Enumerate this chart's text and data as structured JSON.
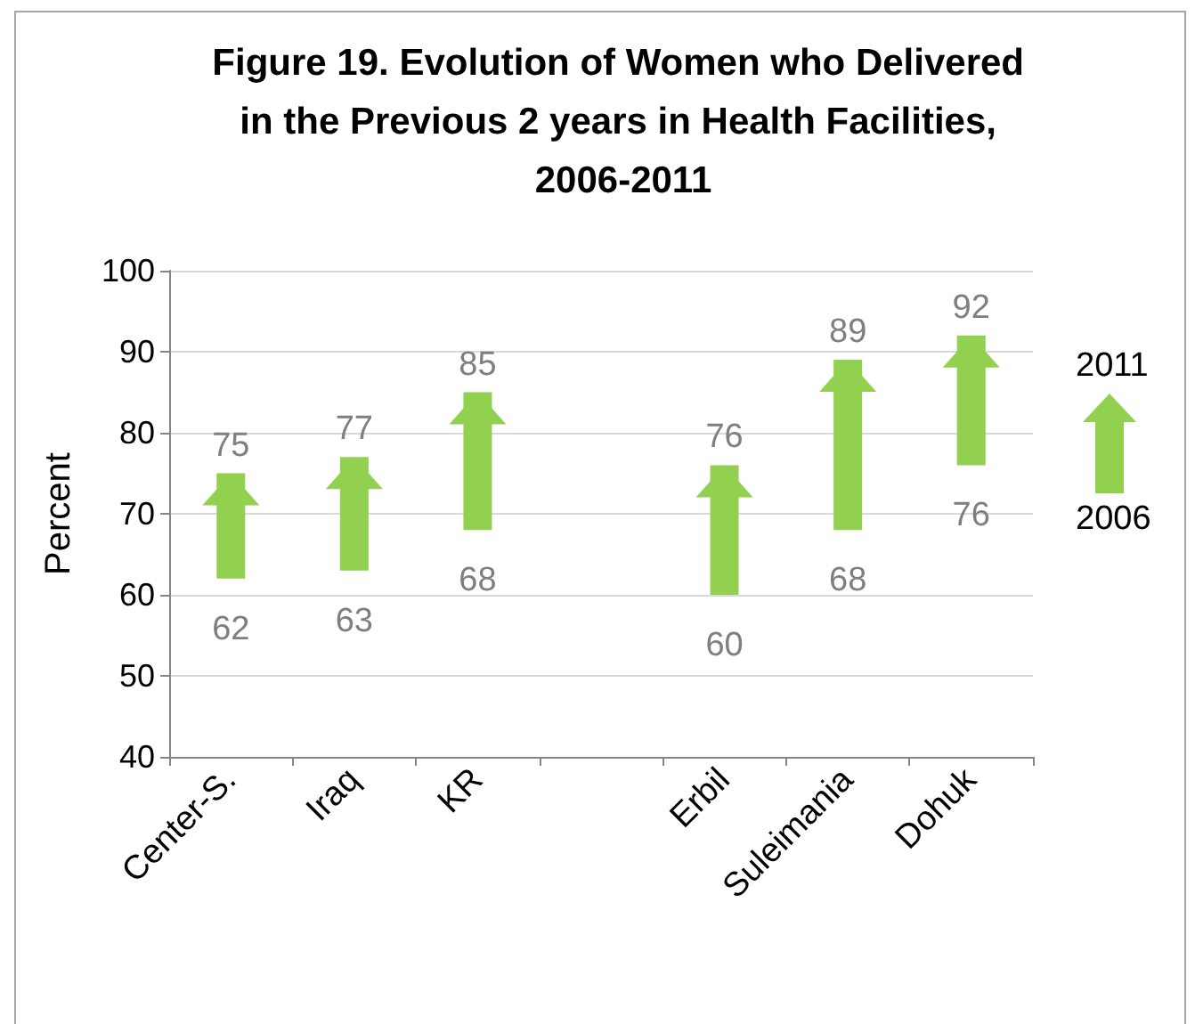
{
  "chart_data": {
    "type": "bar",
    "title": "Figure 19. Evolution of Women who Delivered in the Previous 2 years in Health Facilities, 2006-2011",
    "ylabel": "Percent",
    "categories": [
      "Center-S.",
      "Iraq",
      "KR",
      null,
      "Erbil",
      "Suleimania",
      "Dohuk"
    ],
    "base": [
      62,
      63,
      68,
      null,
      60,
      68,
      76
    ],
    "values": [
      13,
      14,
      17,
      null,
      16,
      21,
      16
    ],
    "value_labels": [
      "75",
      "77",
      "85",
      null,
      "76",
      "89",
      "92"
    ],
    "color": "#92d050",
    "ylim": [
      40,
      100
    ],
    "yticks": [
      40,
      50,
      60,
      70,
      80,
      90,
      100
    ],
    "grid": "y",
    "annotations": [
      "2011",
      "2006",
      "62",
      "63",
      "68",
      "60",
      "68",
      "76"
    ]
  }
}
